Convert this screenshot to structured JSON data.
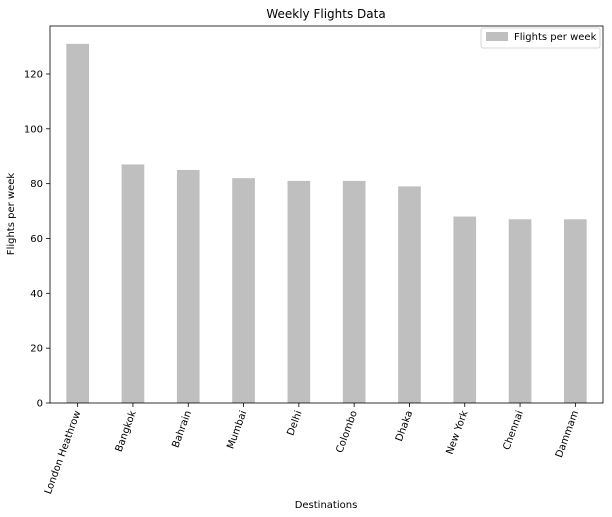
{
  "chart_data": {
    "type": "bar",
    "title": "Weekly Flights Data",
    "xlabel": "Destinations",
    "ylabel": "Flights per week",
    "categories": [
      "London Heathrow",
      "Bangkok",
      "Bahrain",
      "Mumbai",
      "Delhi",
      "Colombo",
      "Dhaka",
      "New York",
      "Chennai",
      "Dammam"
    ],
    "series": [
      {
        "name": "Flights per week",
        "values": [
          131,
          87,
          85,
          82,
          81,
          81,
          79,
          68,
          67,
          67
        ],
        "color": "#bfbfbf"
      }
    ],
    "ylim": [
      0,
      137.5
    ],
    "yticks": [
      0,
      20,
      40,
      60,
      80,
      100,
      120
    ],
    "grid": false,
    "legend_position": "top-right"
  }
}
